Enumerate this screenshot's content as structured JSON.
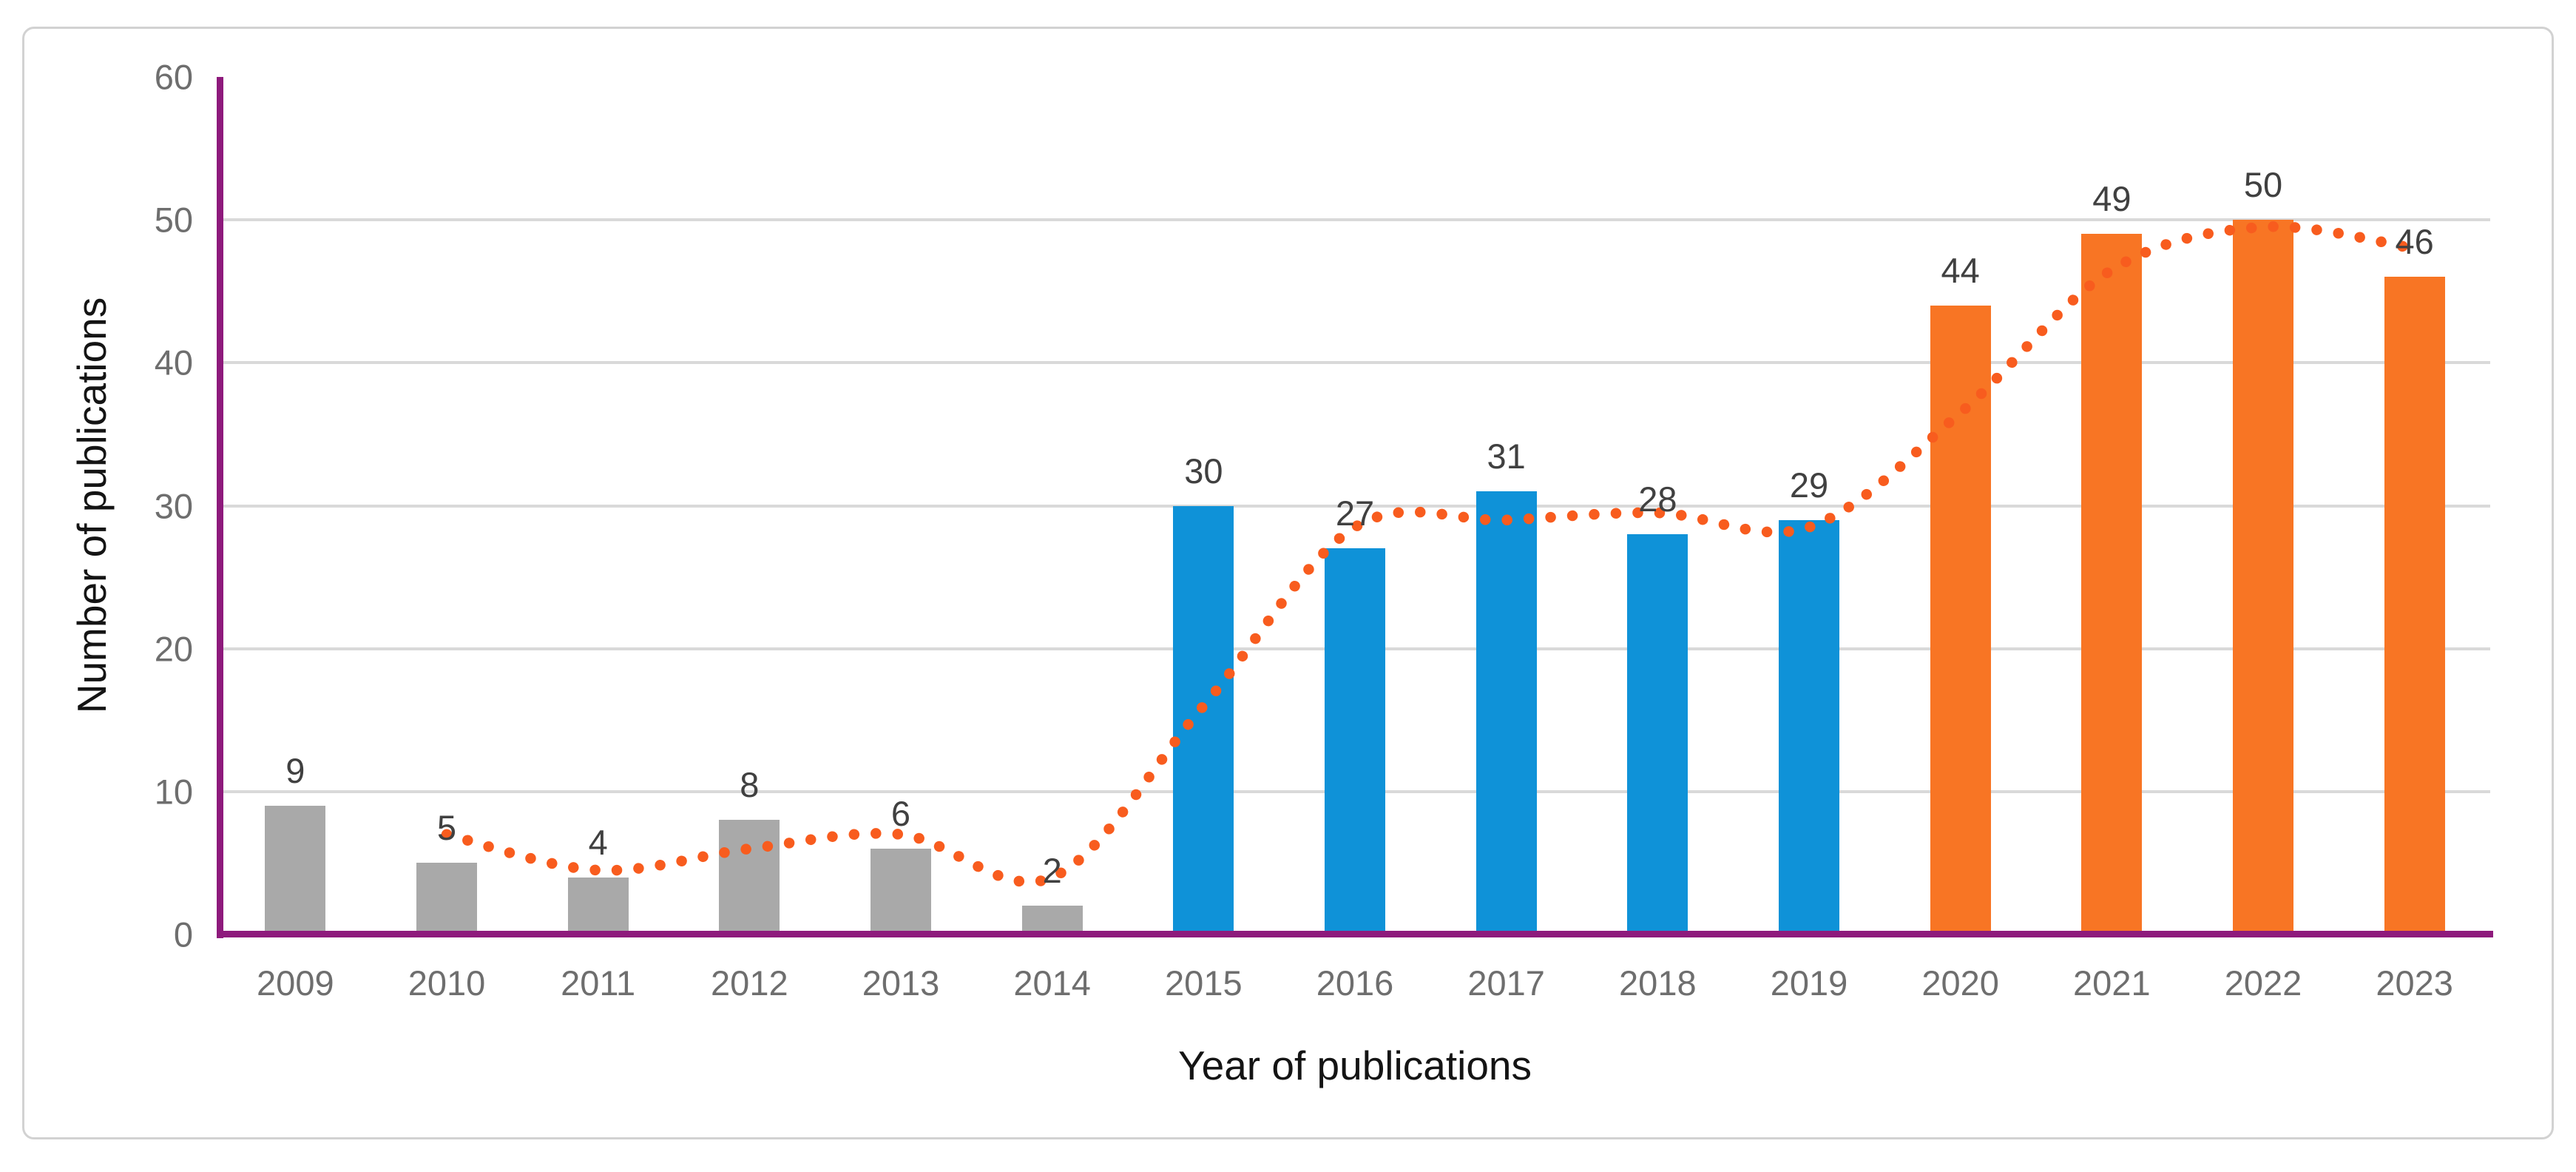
{
  "figure": {
    "background": "#ffffff",
    "border_color": "#d2d2d2"
  },
  "chart_data": {
    "type": "bar",
    "title": "",
    "xlabel": "Year of publications",
    "ylabel": "Number of publications",
    "categories": [
      "2009",
      "2010",
      "2011",
      "2012",
      "2013",
      "2014",
      "2015",
      "2016",
      "2017",
      "2018",
      "2019",
      "2020",
      "2021",
      "2022",
      "2023"
    ],
    "values": [
      9,
      5,
      4,
      8,
      6,
      2,
      30,
      27,
      31,
      28,
      29,
      44,
      49,
      50,
      46
    ],
    "bar_color_keys": [
      "gray_bar",
      "gray_bar",
      "gray_bar",
      "gray_bar",
      "gray_bar",
      "gray_bar",
      "blue_bar",
      "blue_bar",
      "blue_bar",
      "blue_bar",
      "blue_bar",
      "orange_bar",
      "orange_bar",
      "orange_bar",
      "orange_bar"
    ],
    "ylim": [
      0,
      60
    ],
    "yticks": [
      0,
      10,
      20,
      30,
      40,
      50,
      60
    ],
    "grid": "horizontal",
    "legend": "none",
    "trendline": {
      "style": "dotted",
      "x": [
        "2010",
        "2011",
        "2012",
        "2013",
        "2014",
        "2015",
        "2016",
        "2017",
        "2018",
        "2019",
        "2020",
        "2021",
        "2022",
        "2023"
      ],
      "values": [
        7,
        4.5,
        6,
        7,
        4,
        16,
        28.5,
        29,
        29.5,
        28.5,
        36.5,
        46.5,
        49.5,
        48
      ]
    }
  },
  "colors": {
    "gray_bar": "#a9a9a9",
    "blue_bar": "#0f92d8",
    "orange_bar": "#f87524",
    "trendline_dot": "#f85c1e",
    "axis_line": "#8e1a7c",
    "gridline": "#d9d9d9",
    "tick_label": "#6e6e6e",
    "data_label": "#404040",
    "axis_title": "#141414"
  }
}
